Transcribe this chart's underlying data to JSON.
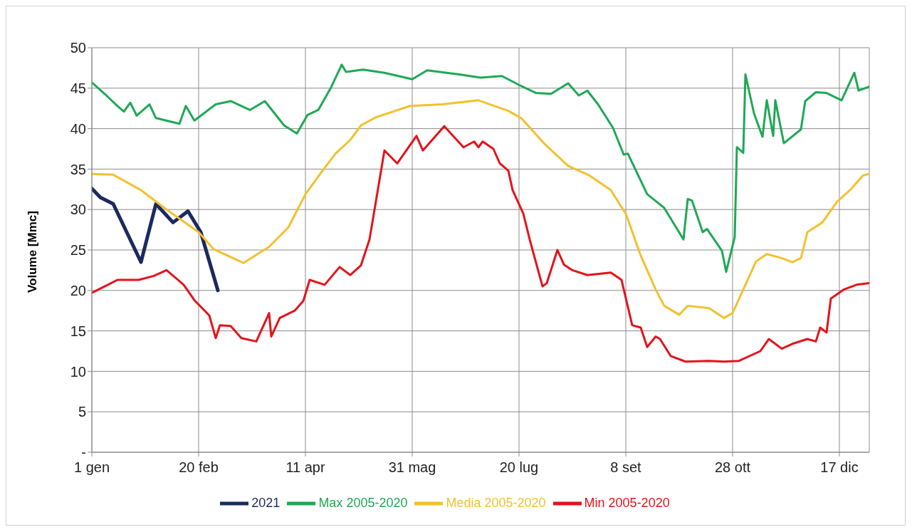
{
  "chart_data": {
    "type": "line",
    "ylabel": "Volume [Mmc]",
    "xlim": [
      "--01-01",
      "--12-31"
    ],
    "xticks": [
      {
        "value": "--01-01",
        "label": "1 gen"
      },
      {
        "value": "--02-20",
        "label": "20 feb"
      },
      {
        "value": "--04-11",
        "label": "11 apr"
      },
      {
        "value": "--05-31",
        "label": "31 mag"
      },
      {
        "value": "--07-20",
        "label": "20 lug"
      },
      {
        "value": "--09-08",
        "label": "8 set"
      },
      {
        "value": "--10-28",
        "label": "28 ott"
      },
      {
        "value": "--12-17",
        "label": "17 dic"
      }
    ],
    "ylim": [
      0,
      50
    ],
    "yticks": [
      {
        "value": 0,
        "label": "-"
      },
      5,
      10,
      15,
      20,
      25,
      30,
      35,
      40,
      45,
      50
    ],
    "grid": true,
    "legend": "bottom",
    "marker": "none",
    "line_style": "solid",
    "series": [
      {
        "name": "2021",
        "color": "#1b2a5e",
        "x": [
          "--01-01",
          "--01-05",
          "--01-11",
          "--01-24",
          "--01-31",
          "--02-08",
          "--02-15",
          "--02-21",
          "--03-01"
        ],
        "values": [
          32.6,
          31.5,
          30.7,
          23.5,
          30.7,
          28.4,
          29.8,
          27.2,
          20.0
        ]
      },
      {
        "name": "Media 2005-2020",
        "color": "#f2c12e",
        "x": [
          "--01-01",
          "--01-11",
          "--01-24",
          "--02-05",
          "--02-20",
          "--02-27",
          "--03-13",
          "--03-25",
          "--04-03",
          "--04-11",
          "--04-19",
          "--04-25",
          "--05-02",
          "--05-07",
          "--05-14",
          "--05-30",
          "--06-14",
          "--07-01",
          "--07-15",
          "--07-21",
          "--08-01",
          "--08-12",
          "--08-22",
          "--09-01",
          "--09-05",
          "--09-08",
          "--09-15",
          "--09-22",
          "--09-26",
          "--10-03",
          "--10-07",
          "--10-17",
          "--10-24",
          "--10-28",
          "--11-03",
          "--11-08",
          "--11-13",
          "--11-20",
          "--11-25",
          "--11-29",
          "--12-02",
          "--12-09",
          "--12-16",
          "--12-22",
          "--12-28",
          "--12-31"
        ],
        "values": [
          34.4,
          34.3,
          32.4,
          30.0,
          27.2,
          25.1,
          23.4,
          25.4,
          27.8,
          31.9,
          34.8,
          36.9,
          38.6,
          40.4,
          41.4,
          42.8,
          43.0,
          43.5,
          42.2,
          41.3,
          38.1,
          35.4,
          34.2,
          32.4,
          30.7,
          29.5,
          24.3,
          20.1,
          18.1,
          17.0,
          18.1,
          17.8,
          16.6,
          17.2,
          20.7,
          23.6,
          24.5,
          24.0,
          23.5,
          24.0,
          27.2,
          28.4,
          31.0,
          32.4,
          34.2,
          34.4
        ]
      },
      {
        "name": "Max 2005-2020",
        "color": "#1fa855",
        "x": [
          "--01-01",
          "--01-07",
          "--01-13",
          "--01-16",
          "--01-19",
          "--01-22",
          "--01-28",
          "--01-31",
          "--02-11",
          "--02-14",
          "--02-18",
          "--02-28",
          "--03-07",
          "--03-16",
          "--03-23",
          "--04-01",
          "--04-07",
          "--04-12",
          "--04-17",
          "--04-23",
          "--04-28",
          "--04-30",
          "--05-08",
          "--05-18",
          "--05-31",
          "--06-07",
          "--06-22",
          "--07-02",
          "--07-12",
          "--07-20",
          "--07-28",
          "--08-04",
          "--08-12",
          "--08-17",
          "--08-21",
          "--08-26",
          "--09-02",
          "--09-07",
          "--09-09",
          "--09-18",
          "--09-26",
          "--10-05",
          "--10-07",
          "--10-09",
          "--10-14",
          "--10-16",
          "--10-23",
          "--10-25",
          "--10-29",
          "--10-30",
          "--11-02",
          "--11-03",
          "--11-07",
          "--11-11",
          "--11-13",
          "--11-16",
          "--11-17",
          "--11-21",
          "--11-29",
          "--12-01",
          "--12-06",
          "--12-11",
          "--12-18",
          "--12-24",
          "--12-26",
          "--12-31"
        ],
        "values": [
          45.7,
          44.3,
          42.8,
          42.1,
          43.2,
          41.6,
          43.0,
          41.3,
          40.6,
          42.8,
          41.0,
          43.0,
          43.4,
          42.3,
          43.4,
          40.4,
          39.4,
          41.7,
          42.3,
          45.1,
          47.9,
          47.0,
          47.3,
          46.9,
          46.1,
          47.2,
          46.7,
          46.3,
          46.5,
          45.4,
          44.4,
          44.3,
          45.6,
          44.1,
          44.7,
          43.0,
          40.1,
          36.8,
          36.9,
          31.9,
          30.2,
          26.3,
          31.3,
          31.1,
          27.2,
          27.6,
          24.9,
          22.3,
          26.6,
          37.7,
          37.0,
          46.7,
          41.9,
          39.0,
          43.5,
          39.1,
          43.5,
          38.2,
          39.9,
          43.4,
          44.5,
          44.4,
          43.5,
          46.9,
          44.7,
          45.2
        ]
      },
      {
        "name": "Min 2005-2020",
        "color": "#e3131b",
        "x": [
          "--01-01",
          "--01-07",
          "--01-13",
          "--01-23",
          "--01-30",
          "--02-05",
          "--02-13",
          "--02-18",
          "--02-25",
          "--02-28",
          "--03-02",
          "--03-07",
          "--03-12",
          "--03-19",
          "--03-25",
          "--03-26",
          "--03-30",
          "--04-06",
          "--04-10",
          "--04-13",
          "--04-20",
          "--04-27",
          "--05-02",
          "--05-07",
          "--05-11",
          "--05-18",
          "--05-24",
          "--06-02",
          "--06-05",
          "--06-15",
          "--06-24",
          "--06-29",
          "--07-01",
          "--07-03",
          "--07-08",
          "--07-11",
          "--07-15",
          "--07-17",
          "--07-22",
          "--07-25",
          "--07-31",
          "--08-02",
          "--08-07",
          "--08-10",
          "--08-14",
          "--08-21",
          "--09-01",
          "--09-06",
          "--09-11",
          "--09-15",
          "--09-18",
          "--09-22",
          "--09-24",
          "--09-29",
          "--10-06",
          "--10-17",
          "--10-24",
          "--10-31",
          "--11-10",
          "--11-14",
          "--11-20",
          "--11-25",
          "--12-02",
          "--12-06",
          "--12-08",
          "--12-11",
          "--12-13",
          "--12-19",
          "--12-25",
          "--12-31"
        ],
        "values": [
          19.7,
          20.5,
          21.3,
          21.3,
          21.8,
          22.5,
          20.7,
          18.8,
          16.9,
          14.1,
          15.7,
          15.6,
          14.1,
          13.7,
          17.2,
          14.3,
          16.6,
          17.5,
          18.7,
          21.3,
          20.7,
          22.9,
          21.9,
          23.1,
          26.3,
          37.3,
          35.7,
          39.1,
          37.3,
          40.3,
          37.7,
          38.4,
          37.7,
          38.4,
          37.5,
          35.7,
          34.8,
          32.4,
          29.5,
          26.3,
          20.5,
          20.9,
          25.0,
          23.2,
          22.5,
          21.9,
          22.2,
          21.3,
          15.7,
          15.4,
          13.0,
          14.3,
          14.0,
          11.9,
          11.2,
          11.3,
          11.2,
          11.3,
          12.5,
          14.0,
          12.8,
          13.4,
          14.0,
          13.7,
          15.4,
          14.8,
          19.0,
          20.1,
          20.7,
          20.9
        ]
      }
    ]
  }
}
